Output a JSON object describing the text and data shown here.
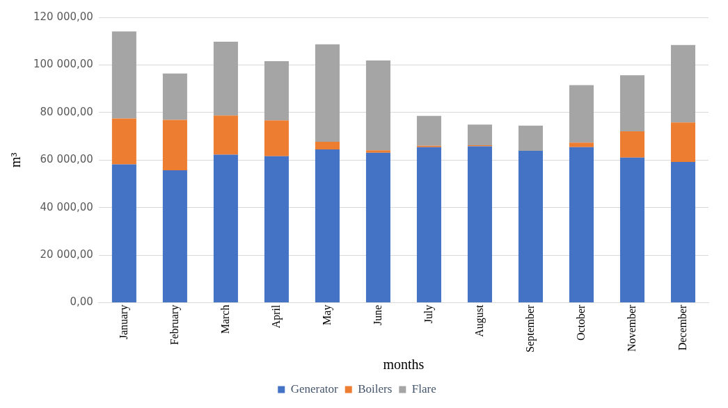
{
  "chart_data": {
    "type": "bar",
    "stacked": true,
    "xlabel": "months",
    "ylabel": "m³",
    "categories": [
      "January",
      "February",
      "March",
      "April",
      "May",
      "June",
      "July",
      "August",
      "September",
      "October",
      "November",
      "December"
    ],
    "series": [
      {
        "name": "Generator",
        "color": "#4472c4",
        "values": [
          58200,
          55700,
          62300,
          61600,
          64500,
          63100,
          65400,
          65800,
          63900,
          65400,
          61000,
          59200
        ]
      },
      {
        "name": "Boilers",
        "color": "#ed7d31",
        "values": [
          19300,
          21200,
          16400,
          15100,
          3200,
          1000,
          600,
          400,
          0,
          1900,
          11100,
          16600
        ]
      },
      {
        "name": "Flare",
        "color": "#a5a5a5",
        "values": [
          36600,
          19500,
          31100,
          24900,
          41000,
          37800,
          12600,
          8700,
          10600,
          24200,
          23600,
          32600
        ]
      }
    ],
    "ylim": [
      0,
      120000
    ],
    "yticks": [
      {
        "value": 0,
        "label": "0,00"
      },
      {
        "value": 20000,
        "label": "20 000,00"
      },
      {
        "value": 40000,
        "label": "40 000,00"
      },
      {
        "value": 60000,
        "label": "60 000,00"
      },
      {
        "value": 80000,
        "label": "80 000,00"
      },
      {
        "value": 100000,
        "label": "100 000,00"
      },
      {
        "value": 120000,
        "label": "120 000,00"
      }
    ],
    "grid": "y",
    "legend": "bottom"
  }
}
